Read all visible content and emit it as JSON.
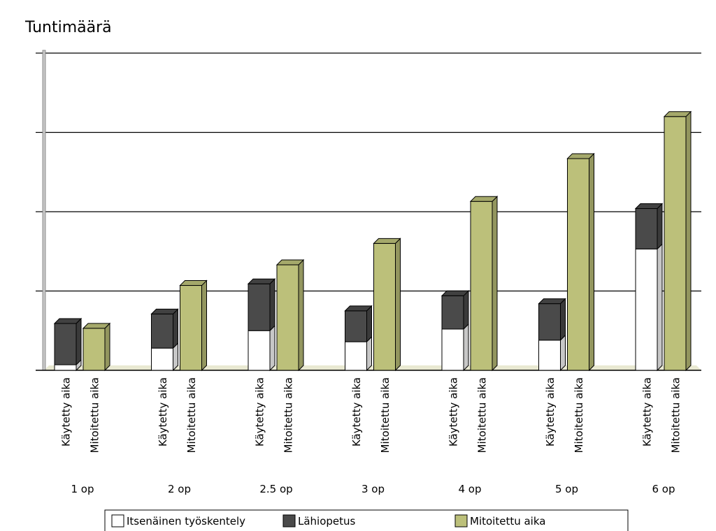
{
  "chart_data": {
    "type": "bar",
    "title": "Tuntimäärä",
    "xlabel": "",
    "ylabel": "",
    "groups": [
      "1 op",
      "2 op",
      "2.5 op",
      "3 op",
      "4 op",
      "5 op",
      "6 op"
    ],
    "bar_labels": [
      "Käytetty aika",
      "Mitoitettu aika"
    ],
    "ylim": [
      0,
      4
    ],
    "grid": true,
    "legend_position": "bottom",
    "series": [
      {
        "name": "Itsenäinen työskentely",
        "bar": "Käytetty aika",
        "color": "#ffffff",
        "values": [
          0.07,
          0.28,
          0.5,
          0.36,
          0.52,
          0.38,
          1.53
        ]
      },
      {
        "name": "Lähiopetus",
        "bar": "Käytetty aika",
        "color": "#4a4a4a",
        "values": [
          0.52,
          0.43,
          0.59,
          0.39,
          0.42,
          0.46,
          0.51
        ]
      },
      {
        "name": "Mitoitettu aika",
        "bar": "Mitoitettu aika",
        "color": "#bcc07a",
        "values": [
          0.53,
          1.07,
          1.33,
          1.6,
          2.13,
          2.67,
          3.2
        ]
      }
    ]
  }
}
